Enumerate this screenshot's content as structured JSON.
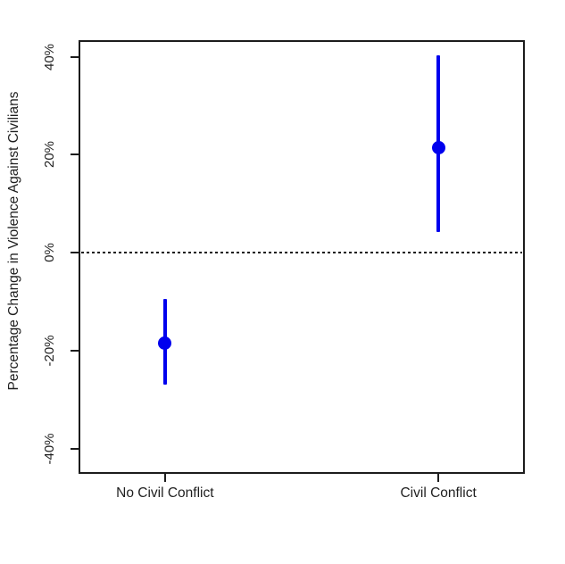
{
  "chart_data": {
    "type": "scatter",
    "subtype": "point-estimates-with-confidence-intervals",
    "title": "",
    "xlabel": "",
    "ylabel": "Percentage Change in Violence Against Civilians",
    "categories": [
      "No Civil Conflict",
      "Civil Conflict"
    ],
    "category_positions": [
      0.1925,
      0.8075
    ],
    "series": [
      {
        "name": "estimate",
        "estimates": [
          -18.4,
          21.5
        ],
        "ci_low": [
          -26.8,
          4.2
        ],
        "ci_high": [
          -9.4,
          40.3
        ]
      }
    ],
    "yticks": [
      {
        "value": 40,
        "label": "40%"
      },
      {
        "value": 20,
        "label": "20%"
      },
      {
        "value": 0,
        "label": "0%"
      },
      {
        "value": -20,
        "label": "-20%"
      },
      {
        "value": -40,
        "label": "-40%"
      }
    ],
    "ylim": [
      -44.9,
      43.2
    ],
    "reference_line": {
      "value": 0,
      "style": "dotted",
      "color": "#161616"
    },
    "point_color": "#0000EE",
    "axis_color": "#1c1c1c",
    "grid": false,
    "legend": "none"
  }
}
